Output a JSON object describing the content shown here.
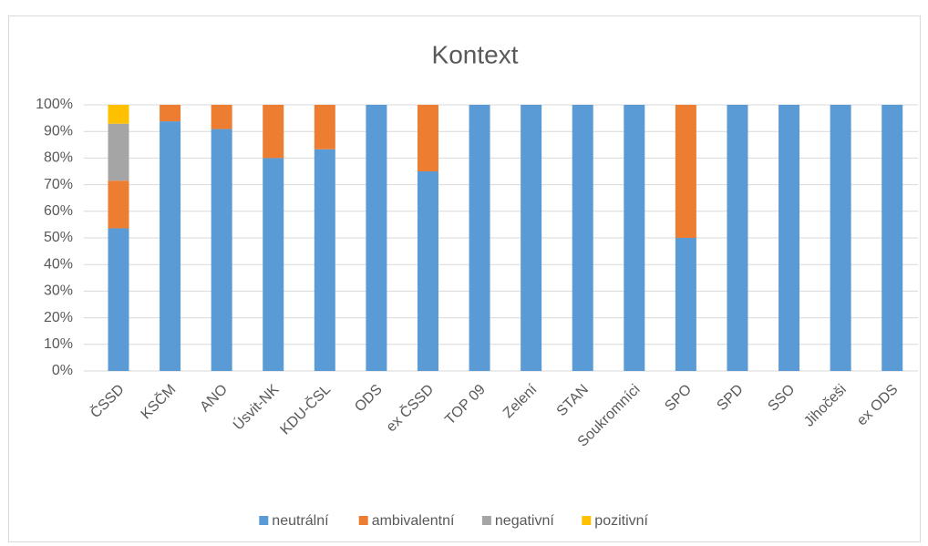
{
  "chart_data": {
    "type": "stacked_bar",
    "title": "Kontext",
    "categories": [
      "ČSSD",
      "KSČM",
      "ANO",
      "Úsvit-NK",
      "KDU-ČSL",
      "ODS",
      "ex ČSSD",
      "TOP 09",
      "Zelení",
      "STAN",
      "Soukromníci",
      "SPO",
      "SPD",
      "SSO",
      "Jihočeši",
      "ex ODS"
    ],
    "series": [
      {
        "name": "neutrální",
        "color": "#5b9bd5",
        "values": [
          53.6,
          93.8,
          90.9,
          80,
          83.3,
          100,
          75,
          100,
          100,
          100,
          100,
          50,
          100,
          100,
          100,
          100
        ]
      },
      {
        "name": "ambivalentní",
        "color": "#ed7d31",
        "values": [
          17.9,
          6.2,
          9.1,
          20,
          16.7,
          0,
          25,
          0,
          0,
          0,
          0,
          50,
          0,
          0,
          0,
          0
        ]
      },
      {
        "name": "negativní",
        "color": "#a5a5a5",
        "values": [
          21.4,
          0,
          0,
          0,
          0,
          0,
          0,
          0,
          0,
          0,
          0,
          0,
          0,
          0,
          0,
          0
        ]
      },
      {
        "name": "pozitivní",
        "color": "#ffc000",
        "values": [
          7.1,
          0,
          0,
          0,
          0,
          0,
          0,
          0,
          0,
          0,
          0,
          0,
          0,
          0,
          0,
          0
        ]
      }
    ],
    "ylim": [
      0,
      100
    ],
    "yticks": [
      {
        "value": 0,
        "label": "0%"
      },
      {
        "value": 10,
        "label": "10%"
      },
      {
        "value": 20,
        "label": "20%"
      },
      {
        "value": 30,
        "label": "30%"
      },
      {
        "value": 40,
        "label": "40%"
      },
      {
        "value": 50,
        "label": "50%"
      },
      {
        "value": 60,
        "label": "60%"
      },
      {
        "value": 70,
        "label": "70%"
      },
      {
        "value": 80,
        "label": "80%"
      },
      {
        "value": 90,
        "label": "90%"
      },
      {
        "value": 100,
        "label": "100%"
      }
    ],
    "grid": true,
    "legend": "bottom"
  }
}
